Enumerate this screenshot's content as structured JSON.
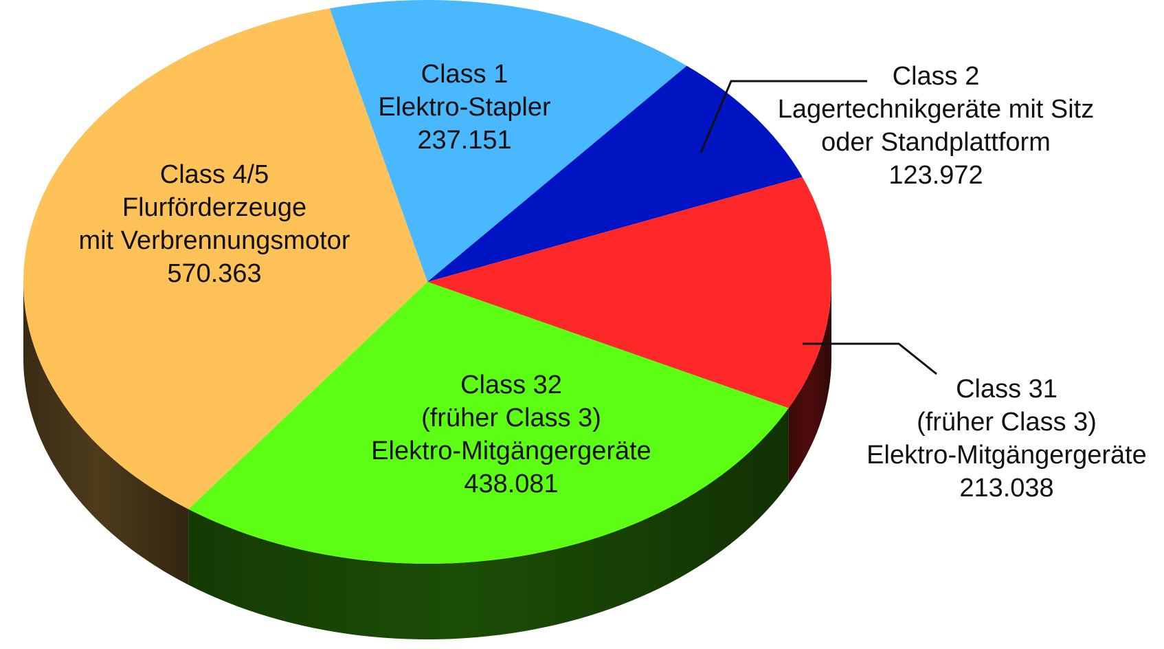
{
  "chart_data": {
    "type": "pie",
    "style": "3d",
    "slices": [
      {
        "name": "Class 1",
        "lines": [
          "Class 1",
          "Elektro-Stapler",
          "237.151"
        ],
        "value": 237151,
        "color": "#4ab8ff"
      },
      {
        "name": "Class 2",
        "lines": [
          "Class 2",
          "Lagertechnikgeräte mit Sitz",
          "oder Standplattform",
          "123.972"
        ],
        "value": 123972,
        "color": "#0014c4"
      },
      {
        "name": "Class 31",
        "lines": [
          "Class 31",
          "(früher Class 3)",
          "Elektro-Mitgängergeräte",
          "213.038"
        ],
        "value": 213038,
        "color": "#ff2828"
      },
      {
        "name": "Class 32",
        "lines": [
          "Class 32",
          "(früher Class 3)",
          "Elektro-Mitgängergeräte",
          "438.081"
        ],
        "value": 438081,
        "color": "#5cff14"
      },
      {
        "name": "Class 4/5",
        "lines": [
          "Class 4/5",
          "Flurförderzeuge",
          "mit Verbrennungsmotor",
          "570.363"
        ],
        "value": 570363,
        "color": "#ffc258"
      }
    ]
  }
}
